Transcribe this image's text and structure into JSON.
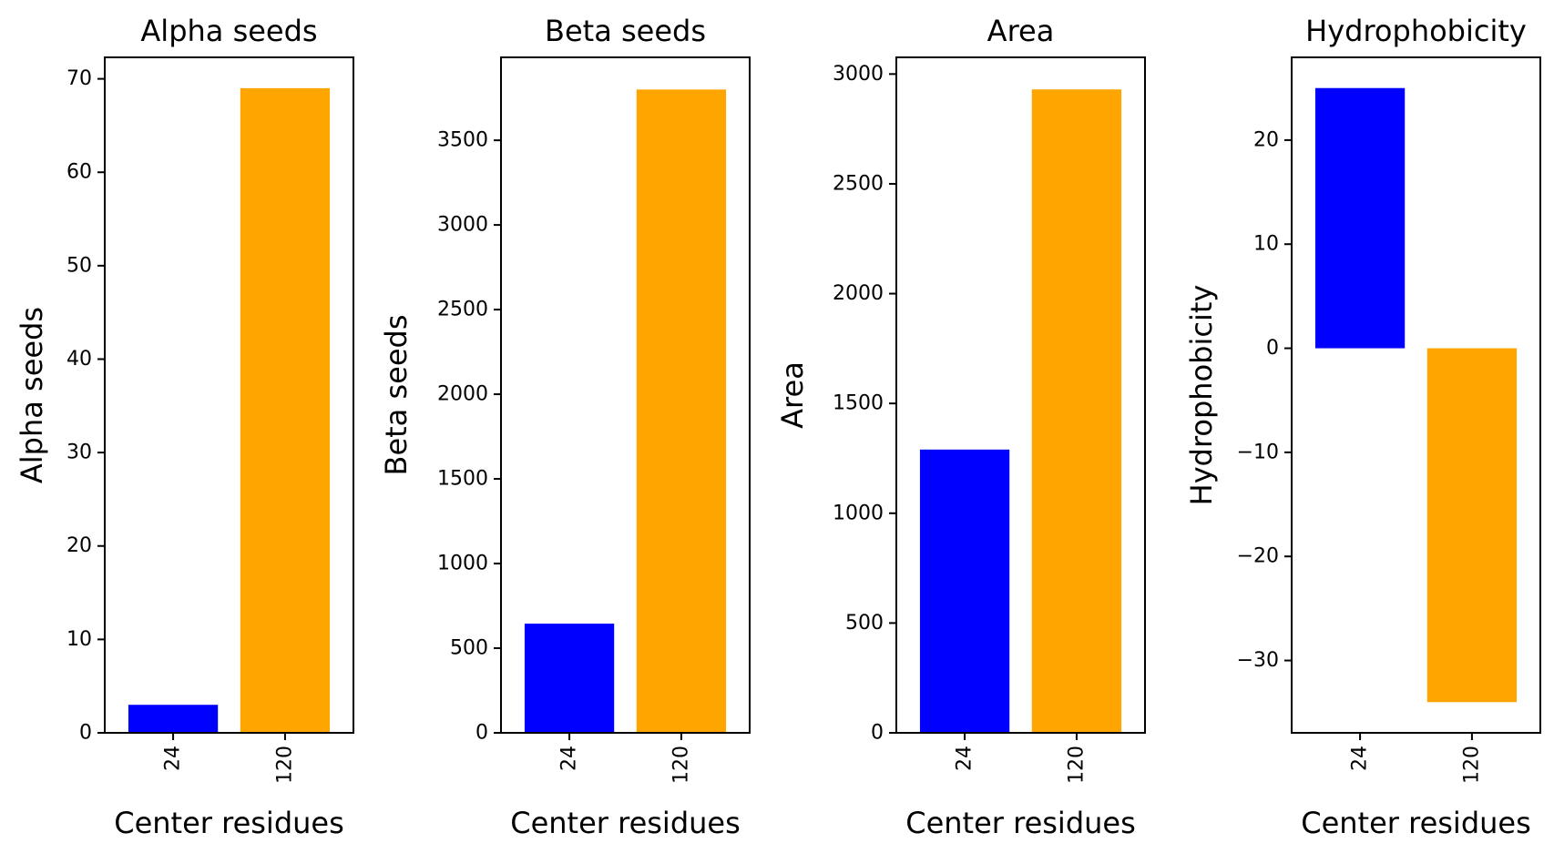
{
  "chart_data": [
    {
      "type": "bar",
      "title": "Alpha seeds",
      "xlabel": "Center residues",
      "ylabel": "Alpha seeds",
      "categories": [
        "24",
        "120"
      ],
      "values": [
        3,
        69
      ],
      "colors": [
        "#0000ff",
        "#ffa500"
      ],
      "ylim": [
        0,
        72.3
      ],
      "yticks": [
        0,
        10,
        20,
        30,
        40,
        50,
        60,
        70
      ],
      "ytick_labels": [
        "0",
        "10",
        "20",
        "30",
        "40",
        "50",
        "60",
        "70"
      ],
      "grid": false
    },
    {
      "type": "bar",
      "title": "Beta seeds",
      "xlabel": "Center residues",
      "ylabel": "Beta seeds",
      "categories": [
        "24",
        "120"
      ],
      "values": [
        645,
        3800
      ],
      "colors": [
        "#0000ff",
        "#ffa500"
      ],
      "ylim": [
        0,
        3990
      ],
      "yticks": [
        0,
        500,
        1000,
        1500,
        2000,
        2500,
        3000,
        3500
      ],
      "ytick_labels": [
        "0",
        "500",
        "1000",
        "1500",
        "2000",
        "2500",
        "3000",
        "3500"
      ],
      "grid": false
    },
    {
      "type": "bar",
      "title": "Area",
      "xlabel": "Center residues",
      "ylabel": "Area",
      "categories": [
        "24",
        "120"
      ],
      "values": [
        1290,
        2930
      ],
      "colors": [
        "#0000ff",
        "#ffa500"
      ],
      "ylim": [
        0,
        3076
      ],
      "yticks": [
        0,
        500,
        1000,
        1500,
        2000,
        2500,
        3000
      ],
      "ytick_labels": [
        "0",
        "500",
        "1000",
        "1500",
        "2000",
        "2500",
        "3000"
      ],
      "grid": false
    },
    {
      "type": "bar",
      "title": "Hydrophobicity",
      "xlabel": "Center residues",
      "ylabel": "Hydrophobicity",
      "categories": [
        "24",
        "120"
      ],
      "values": [
        25,
        -34
      ],
      "colors": [
        "#0000ff",
        "#ffa500"
      ],
      "ylim": [
        -36.95,
        27.95
      ],
      "yticks": [
        -30,
        -20,
        -10,
        0,
        10,
        20
      ],
      "ytick_labels": [
        "−30",
        "−20",
        "−10",
        "0",
        "10",
        "20"
      ],
      "grid": false
    }
  ]
}
